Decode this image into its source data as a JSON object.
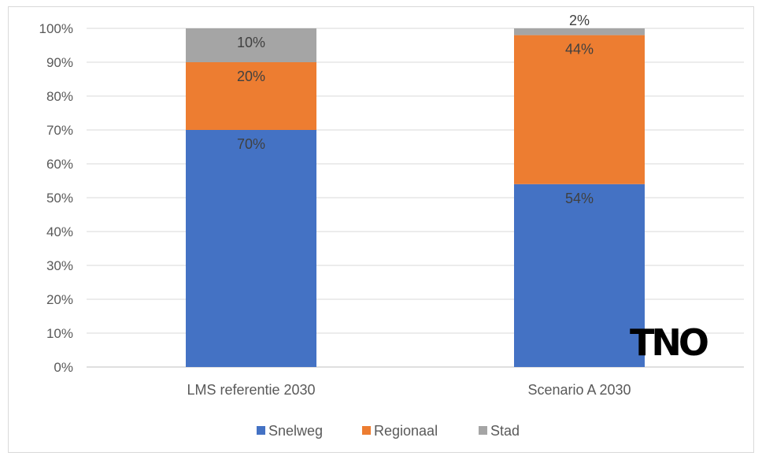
{
  "chart_data": {
    "type": "bar",
    "stacked": true,
    "percent_stacked": true,
    "categories": [
      "LMS referentie 2030",
      "Scenario A 2030"
    ],
    "series": [
      {
        "name": "Snelweg",
        "values": [
          70,
          54
        ],
        "color": "#4472C4"
      },
      {
        "name": "Regionaal",
        "values": [
          20,
          44
        ],
        "color": "#ED7D31"
      },
      {
        "name": "Stad",
        "values": [
          10,
          2
        ],
        "color": "#A5A5A5"
      }
    ],
    "data_labels": [
      [
        "70%",
        "54%"
      ],
      [
        "20%",
        "44%"
      ],
      [
        "10%",
        "2%"
      ]
    ],
    "y_ticks": [
      "0%",
      "10%",
      "20%",
      "30%",
      "40%",
      "50%",
      "60%",
      "70%",
      "80%",
      "90%",
      "100%"
    ],
    "ylim": [
      0,
      100
    ],
    "grid": true,
    "legend_position": "bottom"
  },
  "logo": {
    "text": "TNO"
  }
}
